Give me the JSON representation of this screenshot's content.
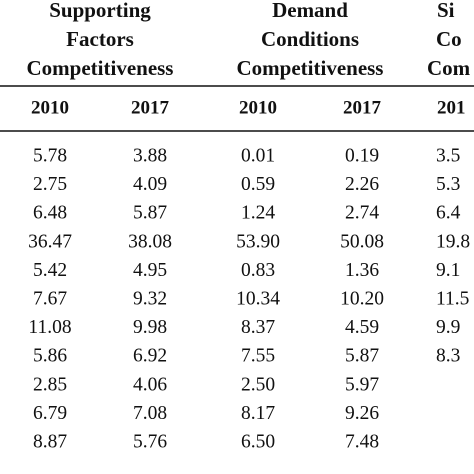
{
  "table": {
    "groups": [
      {
        "lines": [
          "Supporting",
          "Factors",
          "Competitiveness"
        ],
        "years": [
          "2010",
          "2017"
        ]
      },
      {
        "lines": [
          "Demand",
          "Conditions",
          "Competitiveness"
        ],
        "years": [
          "2010",
          "2017"
        ]
      },
      {
        "lines": [
          "Si",
          "Co",
          "Com"
        ],
        "years": [
          "201"
        ]
      }
    ],
    "rows": [
      [
        "5.78",
        "3.88",
        "0.01",
        "0.19",
        "3.5"
      ],
      [
        "2.75",
        "4.09",
        "0.59",
        "2.26",
        "5.3"
      ],
      [
        "6.48",
        "5.87",
        "1.24",
        "2.74",
        "6.4"
      ],
      [
        "36.47",
        "38.08",
        "53.90",
        "50.08",
        "19.8"
      ],
      [
        "5.42",
        "4.95",
        "0.83",
        "1.36",
        "9.1"
      ],
      [
        "7.67",
        "9.32",
        "10.34",
        "10.20",
        "11.5"
      ],
      [
        "11.08",
        "9.98",
        "8.37",
        "4.59",
        "9.9"
      ],
      [
        "5.86",
        "6.92",
        "7.55",
        "5.87",
        "8.3"
      ],
      [
        "2.85",
        "4.06",
        "2.50",
        "5.97"
      ],
      [
        "6.79",
        "7.08",
        "8.17",
        "9.26"
      ],
      [
        "8.87",
        "5.76",
        "6.50",
        "7.48"
      ]
    ]
  }
}
